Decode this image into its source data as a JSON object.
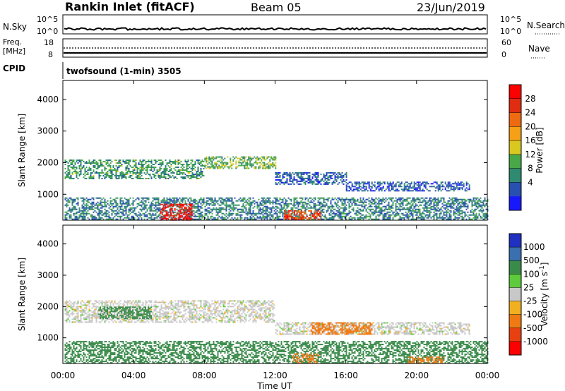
{
  "header": {
    "station": "Rankin Inlet (fitACF)",
    "beam": "Beam 05",
    "date": "23/Jun/2019"
  },
  "top_panels": {
    "nsky_label": "N.Sky",
    "nsky_ticks": [
      "10^5",
      "10^0"
    ],
    "nsearch_label": "N.Search",
    "nsearch_ticks": [
      "10^5",
      "10^0"
    ],
    "freq_label": "Freq.",
    "freq_unit": "[MHz]",
    "freq_ticks": [
      "18",
      "8"
    ],
    "nave_label": "Nave",
    "nave_ticks": [
      "60",
      "0"
    ],
    "cpid_label": "CPID",
    "cpid_text": "twofsound (1-min) 3505"
  },
  "chart_data": [
    {
      "type": "heatmap",
      "name": "power",
      "ylabel": "Slant Range [km]",
      "xlabel": "Time UT",
      "x_ticks": [
        "00:00",
        "04:00",
        "08:00",
        "12:00",
        "16:00",
        "20:00",
        "00:00"
      ],
      "y_ticks": [
        "1000",
        "2000",
        "3000",
        "4000"
      ],
      "xlim_hours": [
        0,
        24
      ],
      "ylim_km": [
        180,
        4600
      ],
      "colorbar": {
        "label": "Power [dB]",
        "ticks": [
          "4",
          "8",
          "12",
          "16",
          "20",
          "24",
          "28"
        ],
        "colors": [
          "#1818ff",
          "#2850b0",
          "#2f8a72",
          "#48a848",
          "#d8c820",
          "#f5a016",
          "#ef6a10",
          "#e02c10",
          "#ff0000"
        ]
      },
      "features": [
        {
          "desc": "upper band",
          "t": [
            0.1,
            8.0
          ],
          "range_km": [
            1500,
            2100
          ],
          "level": 10
        },
        {
          "desc": "upper band",
          "t": [
            8.0,
            12.0
          ],
          "range_km": [
            1800,
            2200
          ],
          "level": 12
        },
        {
          "desc": "descending band",
          "t": [
            12.0,
            16.0
          ],
          "range_km": [
            1300,
            1700
          ],
          "level": 6
        },
        {
          "desc": "lower band",
          "t": [
            16.0,
            23.0
          ],
          "range_km": [
            1100,
            1400
          ],
          "level": 5
        },
        {
          "desc": "near range",
          "t": [
            0.1,
            24.0
          ],
          "range_km": [
            200,
            900
          ],
          "level": 8
        },
        {
          "desc": "near-range enhancement",
          "t": [
            5.5,
            7.3
          ],
          "range_km": [
            200,
            700
          ],
          "level": 28
        },
        {
          "desc": "near-range enhancement",
          "t": [
            12.5,
            14.5
          ],
          "range_km": [
            200,
            500
          ],
          "level": 24
        }
      ]
    },
    {
      "type": "heatmap",
      "name": "velocity",
      "ylabel": "Slant Range [km]",
      "xlabel": "Time UT",
      "x_ticks": [
        "00:00",
        "04:00",
        "08:00",
        "12:00",
        "16:00",
        "20:00",
        "00:00"
      ],
      "y_ticks": [
        "1000",
        "2000",
        "3000",
        "4000"
      ],
      "xlim_hours": [
        0,
        24
      ],
      "ylim_km": [
        180,
        4600
      ],
      "colorbar": {
        "label": "Velocity [m s",
        "label_sup": "-1",
        "label_close": "]",
        "ticks": [
          "1000",
          "500",
          "100",
          "25",
          "-25",
          "-100",
          "-500",
          "-1000"
        ],
        "colors": [
          "#2030c0",
          "#3a6fb0",
          "#3a8a4a",
          "#5ccc3c",
          "#c8c8c8",
          "#f2b020",
          "#ef7a14",
          "#e84010",
          "#ff0000"
        ]
      },
      "features": [
        {
          "desc": "upper band",
          "t": [
            0.1,
            12.0
          ],
          "range_km": [
            1500,
            2200
          ],
          "velocity": 0
        },
        {
          "desc": "green patches",
          "t": [
            2.0,
            5.0
          ],
          "range_km": [
            1600,
            2000
          ],
          "velocity": 150
        },
        {
          "desc": "lower band",
          "t": [
            12.0,
            23.0
          ],
          "range_km": [
            1100,
            1500
          ],
          "velocity": 0
        },
        {
          "desc": "orange patches",
          "t": [
            14.0,
            17.5
          ],
          "range_km": [
            1100,
            1500
          ],
          "velocity": -200
        },
        {
          "desc": "near range",
          "t": [
            0.1,
            24.0
          ],
          "range_km": [
            200,
            900
          ],
          "velocity": 100
        },
        {
          "desc": "near-range orange",
          "t": [
            13.0,
            14.5
          ],
          "range_km": [
            200,
            500
          ],
          "velocity": -200
        },
        {
          "desc": "near-range orange",
          "t": [
            19.5,
            21.5
          ],
          "range_km": [
            200,
            400
          ],
          "velocity": -200
        }
      ]
    }
  ]
}
